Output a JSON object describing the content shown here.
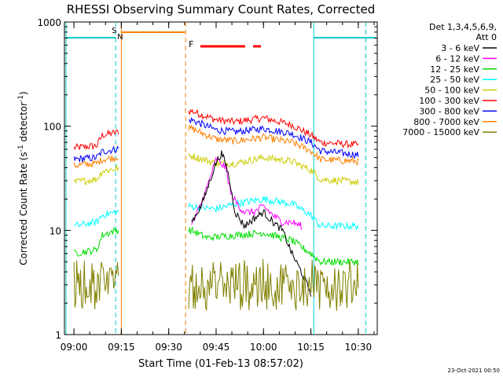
{
  "chart_data": {
    "type": "line",
    "title": "RHESSI Observing Summary Count Rates, Corrected",
    "xlabel": "Start Time (01-Feb-13 08:57:02)",
    "ylabel": "Corrected Count Rate (s⁻¹ detector⁻¹)",
    "ylabel_parts": {
      "pre": "Corrected Count Rate (s",
      "sup1": "-1",
      "mid": " detector",
      "sup2": "-1",
      "post": ")"
    },
    "yscale": "log",
    "ylim": [
      1,
      1000
    ],
    "ytick_labels": [
      "1",
      "10",
      "100",
      "1000"
    ],
    "xlim_minutes": [
      8.95,
      10.6
    ],
    "xticks": [
      {
        "label": "09:00",
        "value": 9.0
      },
      {
        "label": "09:15",
        "value": 9.25
      },
      {
        "label": "09:30",
        "value": 9.5
      },
      {
        "label": "09:45",
        "value": 9.75
      },
      {
        "label": "10:00",
        "value": 10.0
      },
      {
        "label": "10:15",
        "value": 10.25
      },
      {
        "label": "10:30",
        "value": 10.5
      }
    ],
    "legend": {
      "position": "top-right",
      "header1": "Det 1,3,4,5,6,9,",
      "header2": "Att 0",
      "entries": [
        {
          "label": "3 - 6 keV",
          "color": "#000000"
        },
        {
          "label": "6 - 12 keV",
          "color": "#ff00ff"
        },
        {
          "label": "12 - 25 keV",
          "color": "#00dd00"
        },
        {
          "label": "25 - 50 keV",
          "color": "#00ffff"
        },
        {
          "label": "50 - 100 keV",
          "color": "#cccc00"
        },
        {
          "label": "100 - 300 keV",
          "color": "#ff0000"
        },
        {
          "label": "300 - 800 keV",
          "color": "#0000ff"
        },
        {
          "label": "800 - 7000 keV",
          "color": "#ff8000"
        },
        {
          "label": "7000 - 15000 keV",
          "color": "#808000"
        }
      ]
    },
    "annotations": {
      "S": {
        "label": "S",
        "color": "#cc9900"
      },
      "N": {
        "label": "N",
        "color": "#00cccc"
      },
      "F": {
        "label": "F",
        "color": "#ff0000"
      }
    },
    "series": [
      {
        "name": "100 - 300 keV",
        "color": "#ff0000",
        "points": [
          [
            9.0,
            62
          ],
          [
            9.12,
            65
          ],
          [
            9.15,
            82
          ],
          [
            9.22,
            87
          ],
          [
            9.62,
            140
          ],
          [
            9.75,
            115
          ],
          [
            9.85,
            110
          ],
          [
            10.0,
            120
          ],
          [
            10.15,
            103
          ],
          [
            10.25,
            82
          ],
          [
            10.3,
            70
          ],
          [
            10.5,
            66
          ]
        ]
      },
      {
        "name": "300 - 800 keV",
        "color": "#0000ff",
        "points": [
          [
            9.0,
            48
          ],
          [
            9.12,
            50
          ],
          [
            9.15,
            57
          ],
          [
            9.22,
            60
          ],
          [
            9.62,
            115
          ],
          [
            9.75,
            92
          ],
          [
            9.85,
            88
          ],
          [
            10.0,
            95
          ],
          [
            10.15,
            85
          ],
          [
            10.25,
            70
          ],
          [
            10.3,
            58
          ],
          [
            10.5,
            53
          ]
        ]
      },
      {
        "name": "800 - 7000 keV",
        "color": "#ff8000",
        "points": [
          [
            9.0,
            42
          ],
          [
            9.12,
            44
          ],
          [
            9.15,
            48
          ],
          [
            9.22,
            50
          ],
          [
            9.62,
            95
          ],
          [
            9.75,
            75
          ],
          [
            9.85,
            72
          ],
          [
            10.0,
            78
          ],
          [
            10.15,
            70
          ],
          [
            10.25,
            58
          ],
          [
            10.3,
            48
          ],
          [
            10.5,
            46
          ]
        ]
      },
      {
        "name": "50 - 100 keV",
        "color": "#cccc00",
        "points": [
          [
            9.0,
            29
          ],
          [
            9.12,
            31
          ],
          [
            9.15,
            37
          ],
          [
            9.22,
            39
          ],
          [
            9.62,
            52
          ],
          [
            9.75,
            44
          ],
          [
            9.85,
            44
          ],
          [
            10.0,
            50
          ],
          [
            10.15,
            46
          ],
          [
            10.25,
            38
          ],
          [
            10.3,
            31
          ],
          [
            10.5,
            29
          ]
        ]
      },
      {
        "name": "25 - 50 keV",
        "color": "#00ffff",
        "points": [
          [
            9.0,
            11
          ],
          [
            9.12,
            12
          ],
          [
            9.15,
            14
          ],
          [
            9.22,
            15
          ],
          [
            9.62,
            17
          ],
          [
            9.75,
            16
          ],
          [
            9.85,
            18
          ],
          [
            10.0,
            20
          ],
          [
            10.15,
            18
          ],
          [
            10.25,
            14
          ],
          [
            10.3,
            11
          ],
          [
            10.5,
            11
          ]
        ]
      },
      {
        "name": "12 - 25 keV",
        "color": "#00dd00",
        "points": [
          [
            9.0,
            6
          ],
          [
            9.12,
            6.5
          ],
          [
            9.15,
            9
          ],
          [
            9.22,
            10
          ],
          [
            9.62,
            10
          ],
          [
            9.7,
            8.5
          ],
          [
            9.85,
            9
          ],
          [
            10.0,
            9.5
          ],
          [
            10.15,
            8
          ],
          [
            10.25,
            6
          ],
          [
            10.3,
            5
          ],
          [
            10.5,
            5
          ]
        ]
      },
      {
        "name": "6 - 12 keV",
        "color": "#ff00ff",
        "points": [
          [
            9.62,
            11
          ],
          [
            9.67,
            18
          ],
          [
            9.7,
            25
          ],
          [
            9.75,
            48
          ],
          [
            9.8,
            40
          ],
          [
            9.83,
            22
          ],
          [
            9.87,
            17
          ],
          [
            9.9,
            15
          ],
          [
            9.95,
            15
          ],
          [
            10.0,
            17
          ],
          [
            10.05,
            14
          ],
          [
            10.1,
            12
          ],
          [
            10.15,
            12
          ],
          [
            10.2,
            11
          ]
        ]
      },
      {
        "name": "3 - 6 keV",
        "color": "#000000",
        "points": [
          [
            9.62,
            12
          ],
          [
            9.67,
            17
          ],
          [
            9.7,
            24
          ],
          [
            9.75,
            45
          ],
          [
            9.78,
            55
          ],
          [
            9.81,
            38
          ],
          [
            9.85,
            15
          ],
          [
            9.9,
            11
          ],
          [
            9.95,
            13
          ],
          [
            10.0,
            15
          ],
          [
            10.05,
            12
          ],
          [
            10.1,
            10
          ],
          [
            10.15,
            6
          ],
          [
            10.2,
            4
          ],
          [
            10.25,
            2.5
          ]
        ]
      },
      {
        "name": "7000 - 15000 keV",
        "color": "#808000",
        "points": [
          [
            9.0,
            3
          ],
          [
            9.12,
            3
          ],
          [
            9.15,
            3
          ],
          [
            9.22,
            3
          ],
          [
            9.62,
            3
          ],
          [
            9.75,
            3
          ],
          [
            9.85,
            3
          ],
          [
            10.0,
            3
          ],
          [
            10.15,
            3
          ],
          [
            10.25,
            3
          ],
          [
            10.3,
            3
          ],
          [
            10.5,
            3
          ]
        ]
      }
    ]
  },
  "footer": {
    "timestamp": "23-Oct-2021 00:50"
  }
}
